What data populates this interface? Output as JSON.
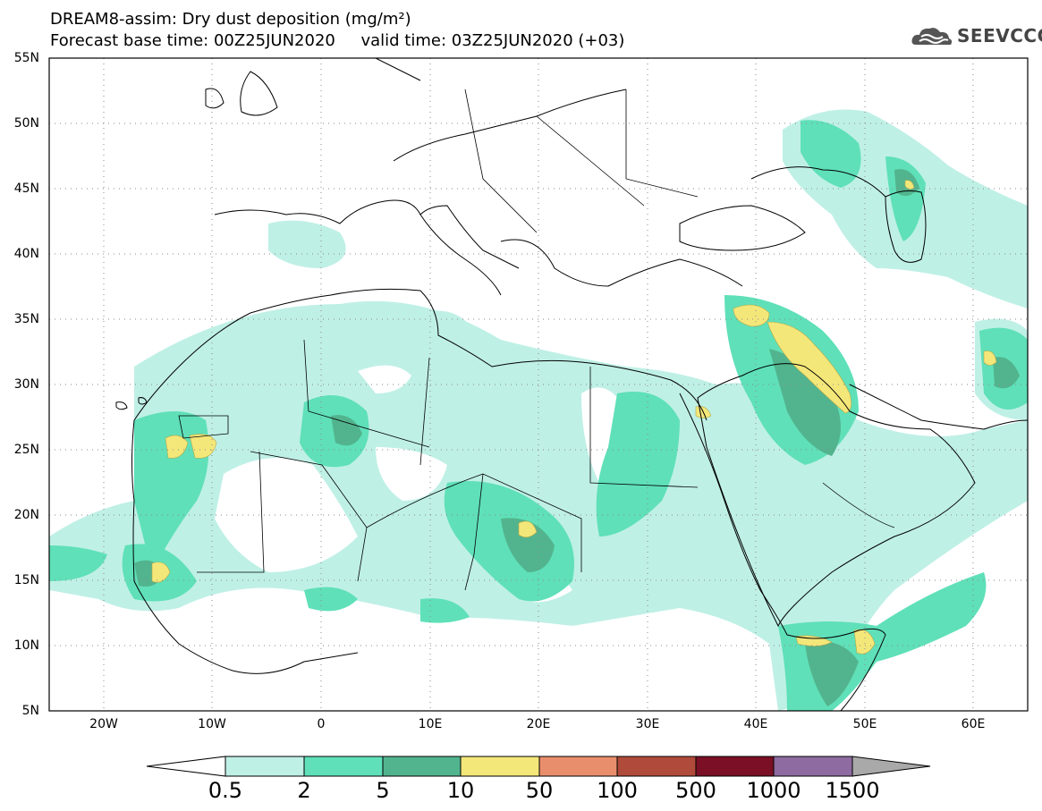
{
  "title": {
    "line1": "DREAM8-assim: Dry dust deposition (mg/m²)",
    "line2": "Forecast base time: 00Z25JUN2020     valid time: 03Z25JUN2020 (+03)"
  },
  "logo": {
    "text": "SEEVCCC",
    "icon": "cloud-icon"
  },
  "axes": {
    "lat_labels": [
      "55N",
      "50N",
      "45N",
      "40N",
      "35N",
      "30N",
      "25N",
      "20N",
      "15N",
      "10N",
      "5N"
    ],
    "lon_labels": [
      "20W",
      "10W",
      "0",
      "10E",
      "20E",
      "30E",
      "40E",
      "50E",
      "60E"
    ]
  },
  "colorbar": {
    "labels": [
      "0.5",
      "2",
      "5",
      "10",
      "50",
      "100",
      "500",
      "1000",
      "1500"
    ],
    "colors": [
      "#bff0e6",
      "#5fe0b8",
      "#52b48e",
      "#f4e77a",
      "#e98e6c",
      "#b04a3a",
      "#7a0f26",
      "#8e6ba0"
    ],
    "under_color": "#ffffff",
    "over_color": "#a9a9a9"
  },
  "palette": {
    "c1": "#bff0e6",
    "c2": "#5fe0b8",
    "c3": "#52b48e",
    "c4": "#f4e77a"
  }
}
